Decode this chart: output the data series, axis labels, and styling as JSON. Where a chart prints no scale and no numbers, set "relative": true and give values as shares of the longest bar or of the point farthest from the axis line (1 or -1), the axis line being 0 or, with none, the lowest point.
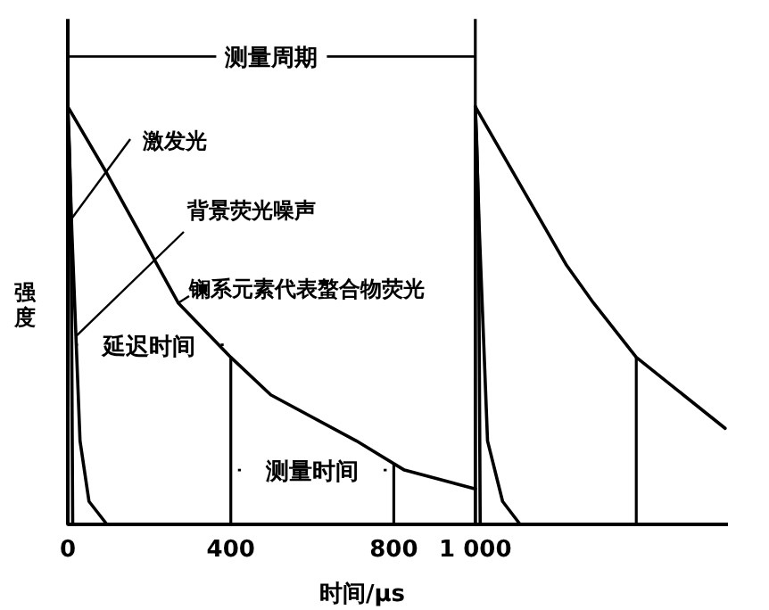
{
  "chart_data": {
    "type": "line",
    "relative": true,
    "xlabel": "时间/μs",
    "ylabel": "强度",
    "xlim": [
      0,
      1620
    ],
    "xticks": [
      0,
      400,
      800,
      {
        "value": 1000,
        "label": "1 000"
      }
    ],
    "tick_labels": "x",
    "marker": "none",
    "line_style": "solid",
    "series": [
      {
        "name": "激发光",
        "color": "#000000",
        "x": [
          0,
          0,
          4,
          8,
          12
        ],
        "values": [
          0,
          1,
          0.9,
          0.73,
          0
        ]
      },
      {
        "name": "背景荧光噪声",
        "color": "#000000",
        "x": [
          0,
          10,
          20,
          30,
          52,
          96
        ],
        "values": [
          1,
          0.7,
          0.45,
          0.2,
          0.055,
          0
        ]
      },
      {
        "name": "镧系元素代表螯合物荧光",
        "color": "#000000",
        "x": [
          0,
          96,
          271,
          400,
          498,
          708,
          826,
          1000
        ],
        "values": [
          1,
          0.84,
          0.53,
          0.4,
          0.31,
          0.2,
          0.13,
          0.085
        ]
      },
      {
        "color": "#000000",
        "x": [
          1000,
          1000,
          1004,
          1008,
          1012
        ],
        "values": [
          0,
          1,
          0.9,
          0.73,
          0
        ]
      },
      {
        "color": "#000000",
        "x": [
          1000,
          1010,
          1020,
          1030,
          1067,
          1110
        ],
        "values": [
          1,
          0.7,
          0.45,
          0.2,
          0.055,
          0
        ]
      },
      {
        "color": "#000000",
        "x": [
          1000,
          1224,
          1290,
          1395,
          1613
        ],
        "values": [
          1,
          0.62,
          0.53,
          0.4,
          0.23
        ]
      }
    ],
    "annotations": [
      "测量周期",
      "延迟时间",
      "测量时间"
    ],
    "ref_lines": [
      {
        "axis": "x",
        "value": 400
      },
      {
        "axis": "x",
        "value": 800
      },
      {
        "axis": "x",
        "value": 1000
      },
      {
        "axis": "x",
        "value": 1395
      }
    ]
  }
}
